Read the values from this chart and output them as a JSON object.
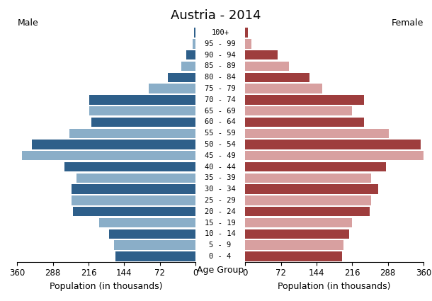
{
  "title": "Austria - 2014",
  "xlabel_left": "Population (in thousands)",
  "xlabel_center": "Age Group",
  "xlabel_right": "Population (in thousands)",
  "label_male": "Male",
  "label_female": "Female",
  "age_groups": [
    "0 - 4",
    "5 - 9",
    "10 - 14",
    "15 - 19",
    "20 - 24",
    "25 - 29",
    "30 - 34",
    "35 - 39",
    "40 - 44",
    "45 - 49",
    "50 - 54",
    "55 - 59",
    "60 - 64",
    "65 - 69",
    "70 - 74",
    "75 - 79",
    "80 - 84",
    "85 - 89",
    "90 - 94",
    "95 - 99",
    "100+"
  ],
  "male": [
    162,
    165,
    175,
    195,
    248,
    250,
    250,
    240,
    265,
    350,
    330,
    255,
    210,
    215,
    215,
    95,
    55,
    28,
    18,
    5,
    2
  ],
  "female": [
    196,
    198,
    210,
    215,
    252,
    255,
    268,
    255,
    285,
    362,
    355,
    290,
    240,
    215,
    240,
    155,
    130,
    88,
    65,
    12,
    5
  ],
  "male_dark": "#2e5f8a",
  "male_light": "#8aaec8",
  "female_dark": "#9e3d3d",
  "female_light": "#d8a0a0",
  "xlim": 360,
  "xticks": [
    360,
    288,
    216,
    144,
    72,
    0
  ],
  "xticks_right": [
    0,
    72,
    144,
    216,
    288,
    360
  ],
  "xtick_labels": [
    "360",
    "288",
    "216",
    "144",
    "72",
    "0"
  ],
  "xtick_labels_right": [
    "0",
    "72",
    "144",
    "216",
    "288",
    "360"
  ],
  "background_color": "#ffffff",
  "title_fontsize": 13,
  "axis_fontsize": 9,
  "tick_fontsize": 8.5,
  "age_label_fontsize": 7.5
}
